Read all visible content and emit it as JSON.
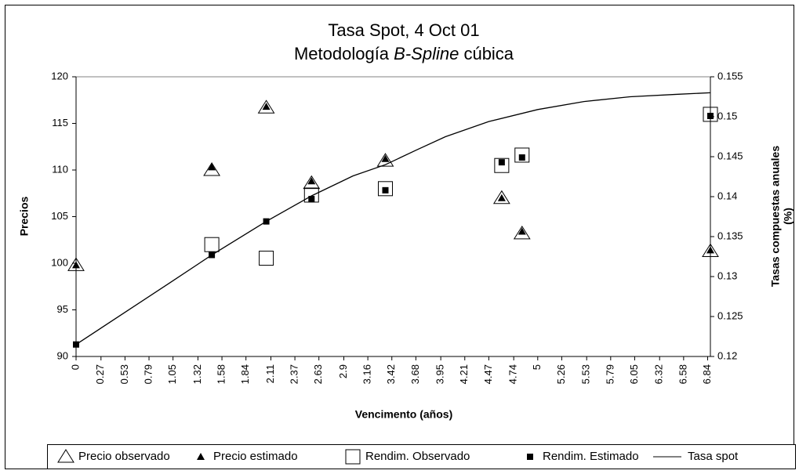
{
  "chart_data": {
    "type": "scatter",
    "title": "Tasa Spot, 4 Oct 01",
    "subtitle": [
      "Metodología",
      "B-Spline",
      "cúbica"
    ],
    "x_label": "Vencimento (años)",
    "y_label": "Precios",
    "y2_label": [
      "Tasas compuestas anuales",
      "(%)"
    ],
    "xlim": [
      0,
      6.87
    ],
    "xticks": [
      0,
      0.27,
      0.53,
      0.79,
      1.05,
      1.32,
      1.58,
      1.84,
      2.11,
      2.37,
      2.63,
      2.9,
      3.16,
      3.42,
      3.68,
      3.95,
      4.21,
      4.47,
      4.74,
      5,
      5.26,
      5.53,
      5.79,
      6.05,
      6.32,
      6.58,
      6.84
    ],
    "ylim": [
      90,
      120
    ],
    "yticks": [
      90,
      95,
      100,
      105,
      110,
      115,
      120
    ],
    "y2lim": [
      0.12,
      0.155
    ],
    "y2ticks": [
      0.12,
      0.125,
      0.13,
      0.135,
      0.14,
      0.145,
      0.15,
      0.155
    ],
    "legend": "bottom",
    "series": [
      {
        "name": "Precio observado",
        "marker": "open-triangle",
        "color": "#000000",
        "x": [
          0,
          1.47,
          2.06,
          2.55,
          3.35,
          4.61,
          4.83,
          6.87
        ],
        "values": [
          99.8,
          110,
          116.7,
          108.6,
          111,
          107,
          103.2,
          101.3
        ]
      },
      {
        "name": "Precio estimado",
        "marker": "filled-triangle",
        "color": "#000000",
        "x": [
          0,
          1.47,
          2.06,
          2.55,
          3.35,
          4.61,
          4.83,
          6.87
        ],
        "values": [
          99.8,
          110.3,
          116.8,
          108.8,
          111.2,
          107,
          103.4,
          101.4
        ]
      },
      {
        "name": "Rendim. Observado",
        "marker": "open-square",
        "color": "#000000",
        "axis": "y2",
        "x": [
          1.47,
          2.06,
          2.55,
          3.35,
          4.61,
          4.83,
          6.87
        ],
        "values": [
          0.134,
          0.1323,
          0.1402,
          0.141,
          0.1439,
          0.1452,
          0.1503
        ]
      },
      {
        "name": "Rendim. Estimado",
        "marker": "filled-square",
        "color": "#000000",
        "axis": "y2",
        "x": [
          0,
          1.47,
          2.06,
          2.55,
          3.35,
          4.61,
          4.83,
          6.87
        ],
        "values": [
          0.1215,
          0.1327,
          0.1369,
          0.1397,
          0.1408,
          0.1443,
          0.1449,
          0.1501
        ]
      },
      {
        "name": "Tasa spot",
        "marker": "line",
        "color": "#000000",
        "axis": "y2",
        "x": [
          0,
          0.5,
          1,
          1.47,
          2.06,
          2.55,
          3,
          3.35,
          3.68,
          4,
          4.47,
          5,
          5.5,
          6,
          6.5,
          6.87
        ],
        "values": [
          0.1215,
          0.1253,
          0.1291,
          0.1327,
          0.1369,
          0.1401,
          0.1426,
          0.144,
          0.1458,
          0.1475,
          0.1494,
          0.1509,
          0.1519,
          0.1525,
          0.1528,
          0.153
        ]
      }
    ]
  }
}
